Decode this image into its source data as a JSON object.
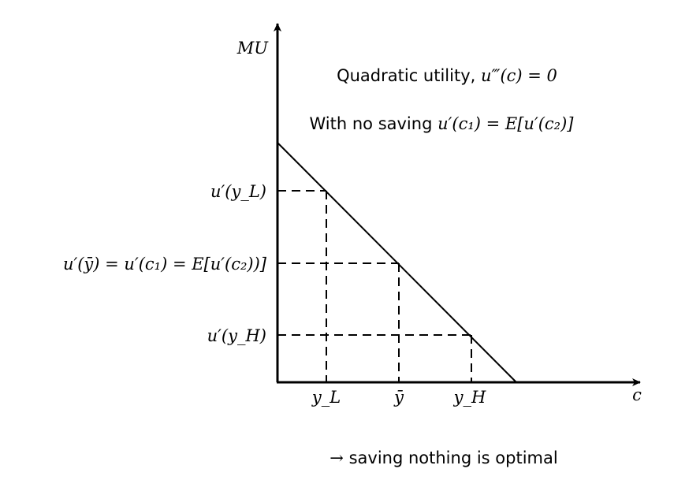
{
  "axes": {
    "y_label": "MU",
    "x_label": "c"
  },
  "annotations": {
    "title_prefix": "Quadratic utility,",
    "title_math": "u‴(c) = 0",
    "subtitle_prefix": "With no saving",
    "subtitle_math": "u′(c₁) = E[u′(c₂)]",
    "conclusion_arrow": "→",
    "conclusion_text": "saving nothing is optimal"
  },
  "y_ticks": {
    "low_income_mu": "u′(y_L)",
    "mean_income_mu": "u′(ȳ) = u′(c₁) = E[u′(c₂))]",
    "high_income_mu": "u′(y_H)"
  },
  "x_ticks": {
    "low_income": "y_L",
    "mean_income": "ȳ",
    "high_income": "y_H"
  },
  "colors": {
    "stroke": "#000000",
    "background": "#ffffff"
  }
}
